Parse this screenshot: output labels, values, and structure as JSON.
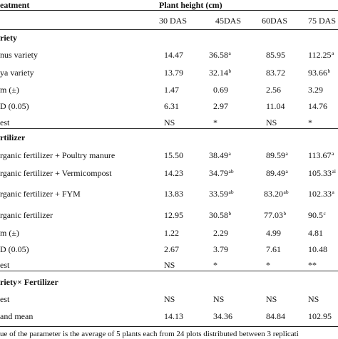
{
  "header": {
    "treatment": "eatment",
    "plant_height": "Plant height (cm)",
    "col_30": "30 DAS",
    "col_45": "45DAS",
    "col_60": "60DAS",
    "col_75": "75 DAS"
  },
  "sections": {
    "variety": "riety",
    "fertilizer": "rtilizer",
    "interaction": "riety× Fertilizer"
  },
  "rows": {
    "v1": {
      "label": "nus variety",
      "d30": "14.47",
      "d45": "36.58",
      "s45": "a",
      "d60": "85.95",
      "s60": "",
      "d75": "112.25",
      "s75": "a"
    },
    "v2": {
      "label": "ya variety",
      "d30": "13.79",
      "d45": "32.14",
      "s45": "b",
      "d60": "83.72",
      "s60": "",
      "d75": "93.66",
      "s75": "b"
    },
    "v_sem": {
      "label": "m (±)",
      "d30": "1.47",
      "d45": "0.69",
      "d60": "2.56",
      "d75": "3.29"
    },
    "v_cd": {
      "label": "D (0.05)",
      "d30": "6.31",
      "d45": "2.97",
      "d60": "11.04",
      "d75": "14.76"
    },
    "v_test": {
      "label": "est",
      "d30": "NS",
      "d45": "*",
      "d60": "NS",
      "d75": "*"
    },
    "f1": {
      "label": "rganic fertilizer + Poultry manure",
      "d30": "15.50",
      "d45": "38.49",
      "s45": "a",
      "d60": "89.59",
      "s60": "a",
      "d75": "113.67",
      "s75": "a"
    },
    "f2": {
      "label": "rganic fertilizer + Vermicompost",
      "d30": "14.23",
      "d45": "34.79",
      "s45": "ab",
      "d60": "89.49",
      "s60": "a",
      "d75": "105.33",
      "s75": "al"
    },
    "f3": {
      "label": "rganic fertilizer + FYM",
      "d30": "13.83",
      "d45": "33.59",
      "s45": "ab",
      "d60": "83.20",
      "s60": "ab",
      "d75": "102.33",
      "s75": "a"
    },
    "f4": {
      "label": "rganic fertilizer",
      "d30": "12.95",
      "d45": "30.58",
      "s45": "b",
      "d60": "77.03",
      "s60": "b",
      "d75": "90.5",
      "s75": "c"
    },
    "f_sem": {
      "label": "m (±)",
      "d30": "1.22",
      "d45": "2.29",
      "d60": "4.99",
      "d75": "4.81"
    },
    "f_cd": {
      "label": "D (0.05)",
      "d30": "2.67",
      "d45": "3.79",
      "d60": "7.61",
      "d75": "10.48"
    },
    "f_test": {
      "label": "est",
      "d30": "NS",
      "d45": "*",
      "d60": "*",
      "d75": "**"
    },
    "i_test": {
      "label": "est",
      "d30": "NS",
      "d45": "NS",
      "d60": "NS",
      "d75": "NS"
    },
    "grand": {
      "label": "and mean",
      "d30": "14.13",
      "d45": "34.36",
      "d60": "84.84",
      "d75": "102.95"
    }
  },
  "footnote": "ue of the parameter is the average of 5 plants each from 24 plots distributed between 3 replicati"
}
